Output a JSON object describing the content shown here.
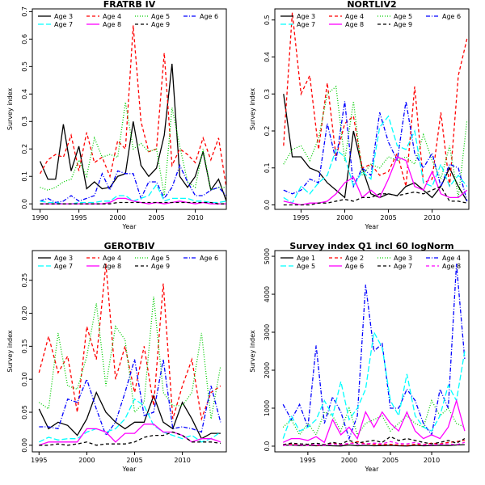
{
  "chart_data": [
    {
      "type": "line",
      "title": "FRATRB IV",
      "xlabel": "Year",
      "ylabel": "Survey index",
      "xlim": [
        1989,
        2014
      ],
      "ylim": [
        -0.02,
        0.71
      ],
      "xticks": [
        1990,
        1995,
        2000,
        2005,
        2010
      ],
      "yticks": [
        0.0,
        0.1,
        0.2,
        0.3,
        0.4,
        0.5,
        0.6,
        0.7
      ],
      "legend_placement": "top",
      "x": [
        1990,
        1991,
        1992,
        1993,
        1994,
        1995,
        1996,
        1997,
        1998,
        1999,
        2000,
        2001,
        2002,
        2003,
        2004,
        2005,
        2006,
        2007,
        2008,
        2009,
        2010,
        2011,
        2012,
        2013,
        2014
      ],
      "series": [
        {
          "name": "Age 3",
          "color": "#000000",
          "dash": "solid",
          "values": [
            0.155,
            0.09,
            0.09,
            0.29,
            0.12,
            0.21,
            0.055,
            0.08,
            0.055,
            0.06,
            0.1,
            0.11,
            0.3,
            0.14,
            0.1,
            0.13,
            0.25,
            0.51,
            0.1,
            0.06,
            0.1,
            0.19,
            0.05,
            0.09,
            0.01
          ]
        },
        {
          "name": "Age 4",
          "color": "#ff0000",
          "dash": "dash",
          "values": [
            0.11,
            0.16,
            0.18,
            0.17,
            0.25,
            0.12,
            0.26,
            0.15,
            0.17,
            0.1,
            0.23,
            0.2,
            0.65,
            0.3,
            0.19,
            0.2,
            0.55,
            0.14,
            0.2,
            0.18,
            0.15,
            0.24,
            0.16,
            0.24,
            0.06
          ]
        },
        {
          "name": "Age 5",
          "color": "#00cd00",
          "dash": "dot",
          "values": [
            0.06,
            0.05,
            0.06,
            0.08,
            0.09,
            0.16,
            0.1,
            0.24,
            0.17,
            0.18,
            0.17,
            0.37,
            0.2,
            0.22,
            0.19,
            0.2,
            0.03,
            0.35,
            0.21,
            0.08,
            0.06,
            0.2,
            0.05,
            0.06,
            0.06
          ]
        },
        {
          "name": "Age 6",
          "color": "#0000ff",
          "dash": "dashdot",
          "values": [
            0.01,
            0.02,
            0.005,
            0.01,
            0.03,
            0.01,
            0.02,
            0.03,
            0.11,
            0.05,
            0.12,
            0.11,
            0.11,
            0.02,
            0.08,
            0.08,
            0.02,
            0.06,
            0.14,
            0.08,
            0.03,
            0.03,
            0.05,
            0.06,
            0.03
          ]
        },
        {
          "name": "Age 7",
          "color": "#00ffff",
          "dash": "longdash",
          "values": [
            0.01,
            0.005,
            0.005,
            0.0,
            0.0,
            0.005,
            0.005,
            0.005,
            0.01,
            0.01,
            0.03,
            0.03,
            0.01,
            0.02,
            0.03,
            0.07,
            0.01,
            0.02,
            0.02,
            0.02,
            0.01,
            0.01,
            0.005,
            0.005,
            0.01
          ]
        },
        {
          "name": "Age 8",
          "color": "#ff00ff",
          "dash": "solid",
          "values": [
            0.0,
            0.0,
            0.0,
            0.0,
            0.0,
            0.0,
            0.0,
            0.0,
            0.0,
            0.005,
            0.02,
            0.02,
            0.01,
            0.005,
            0.0,
            0.005,
            0.0,
            0.005,
            0.01,
            0.005,
            0.0,
            0.005,
            0.0,
            0.0,
            0.0
          ]
        },
        {
          "name": "Age 9",
          "color": "#000000",
          "dash": "dash",
          "values": [
            0.0,
            0.0,
            0.0,
            0.0,
            0.0,
            0.0,
            0.0,
            0.0,
            0.0,
            0.0,
            0.005,
            0.005,
            0.005,
            0.005,
            0.005,
            0.005,
            0.005,
            0.005,
            0.005,
            0.005,
            0.005,
            0.005,
            0.005,
            0.0,
            0.0
          ]
        }
      ]
    },
    {
      "type": "line",
      "title": "NORTLIV2",
      "xlabel": "Year",
      "ylabel": "Survey index",
      "xlim": [
        1992,
        2014.2
      ],
      "ylim": [
        -0.012,
        0.53
      ],
      "xticks": [
        1995,
        2000,
        2005,
        2010
      ],
      "yticks": [
        0.0,
        0.1,
        0.2,
        0.3,
        0.4,
        0.5
      ],
      "legend_placement": "top",
      "x": [
        1993,
        1994,
        1995,
        1996,
        1997,
        1998,
        1999,
        2000,
        2001,
        2002,
        2003,
        2004,
        2005,
        2006,
        2007,
        2008,
        2009,
        2010,
        2011,
        2012,
        2013,
        2014
      ],
      "series": [
        {
          "name": "Age 3",
          "color": "#000000",
          "dash": "solid",
          "values": [
            0.3,
            0.13,
            0.13,
            0.1,
            0.09,
            0.06,
            0.04,
            0.02,
            0.2,
            0.1,
            0.03,
            0.02,
            0.03,
            0.025,
            0.05,
            0.06,
            0.04,
            0.02,
            0.05,
            0.1,
            0.05,
            0.01
          ]
        },
        {
          "name": "Age 4",
          "color": "#ff0000",
          "dash": "dash",
          "values": [
            0.16,
            0.52,
            0.3,
            0.35,
            0.15,
            0.33,
            0.13,
            0.22,
            0.24,
            0.1,
            0.11,
            0.08,
            0.09,
            0.14,
            0.05,
            0.32,
            0.06,
            0.07,
            0.25,
            0.05,
            0.35,
            0.45
          ]
        },
        {
          "name": "Age 5",
          "color": "#00cd00",
          "dash": "dot",
          "values": [
            0.11,
            0.15,
            0.16,
            0.12,
            0.18,
            0.3,
            0.32,
            0.12,
            0.28,
            0.08,
            0.11,
            0.1,
            0.13,
            0.12,
            0.13,
            0.11,
            0.19,
            0.12,
            0.07,
            0.16,
            0.02,
            0.23
          ]
        },
        {
          "name": "Age 6",
          "color": "#0000ff",
          "dash": "dashdot",
          "values": [
            0.04,
            0.03,
            0.04,
            0.07,
            0.06,
            0.22,
            0.12,
            0.28,
            0.05,
            0.1,
            0.08,
            0.25,
            0.17,
            0.12,
            0.28,
            0.14,
            0.1,
            0.14,
            0.05,
            0.11,
            0.1,
            0.01
          ]
        },
        {
          "name": "Age 7",
          "color": "#00ffff",
          "dash": "longdash",
          "values": [
            0.02,
            0.005,
            0.05,
            0.03,
            0.06,
            0.08,
            0.15,
            0.13,
            0.05,
            0.09,
            0.07,
            0.21,
            0.24,
            0.16,
            0.15,
            0.2,
            0.06,
            0.05,
            0.11,
            0.05,
            0.08,
            0.05
          ]
        },
        {
          "name": "Age 8",
          "color": "#ff00ff",
          "dash": "solid",
          "values": [
            0.01,
            0.005,
            0.0,
            0.005,
            0.005,
            0.01,
            0.03,
            0.06,
            0.075,
            0.02,
            0.04,
            0.02,
            0.07,
            0.13,
            0.12,
            0.05,
            0.04,
            0.09,
            0.03,
            0.02,
            0.02,
            0.04
          ]
        },
        {
          "name": "Age 9",
          "color": "#000000",
          "dash": "dash",
          "values": [
            0.0,
            0.0,
            0.0,
            0.0,
            0.005,
            0.005,
            0.01,
            0.015,
            0.01,
            0.02,
            0.02,
            0.03,
            0.03,
            0.025,
            0.03,
            0.035,
            0.03,
            0.04,
            0.05,
            0.01,
            0.01,
            0.005
          ]
        }
      ]
    },
    {
      "type": "line",
      "title": "GEROTBIV",
      "xlabel": "Year",
      "ylabel": "Survey index",
      "xlim": [
        1994.3,
        2014.6
      ],
      "ylim": [
        -0.01,
        0.295
      ],
      "xticks": [
        1995,
        2000,
        2005,
        2010
      ],
      "yticks": [
        0.0,
        0.05,
        0.1,
        0.15,
        0.2,
        0.25
      ],
      "legend_placement": "top",
      "x": [
        1995,
        1996,
        1997,
        1998,
        1999,
        2000,
        2001,
        2002,
        2003,
        2004,
        2005,
        2006,
        2007,
        2008,
        2009,
        2010,
        2011,
        2012,
        2013,
        2014
      ],
      "series": [
        {
          "name": "Age 3",
          "color": "#000000",
          "dash": "solid",
          "values": [
            0.055,
            0.025,
            0.035,
            0.03,
            0.015,
            0.04,
            0.08,
            0.05,
            0.035,
            0.025,
            0.035,
            0.035,
            0.075,
            0.035,
            0.025,
            0.065,
            0.04,
            0.01,
            0.018,
            0.018
          ]
        },
        {
          "name": "Age 4",
          "color": "#ff0000",
          "dash": "dash",
          "values": [
            0.11,
            0.165,
            0.11,
            0.135,
            0.05,
            0.18,
            0.13,
            0.275,
            0.1,
            0.15,
            0.08,
            0.15,
            0.06,
            0.245,
            0.04,
            0.09,
            0.13,
            0.04,
            0.08,
            0.09
          ]
        },
        {
          "name": "Age 5",
          "color": "#00cd00",
          "dash": "dot",
          "values": [
            0.065,
            0.055,
            0.17,
            0.09,
            0.085,
            0.135,
            0.215,
            0.09,
            0.18,
            0.16,
            0.05,
            0.065,
            0.225,
            0.08,
            0.06,
            0.06,
            0.08,
            0.17,
            0.04,
            0.12
          ]
        },
        {
          "name": "Age 6",
          "color": "#0000ff",
          "dash": "dashdot",
          "values": [
            0.028,
            0.028,
            0.025,
            0.07,
            0.065,
            0.1,
            0.055,
            0.015,
            0.035,
            0.08,
            0.13,
            0.045,
            0.05,
            0.13,
            0.025,
            0.028,
            0.025,
            0.02,
            0.09,
            0.035
          ]
        },
        {
          "name": "Age 7",
          "color": "#00ffff",
          "dash": "longdash",
          "values": [
            0.005,
            0.012,
            0.008,
            0.01,
            0.01,
            0.02,
            0.025,
            0.02,
            0.025,
            0.04,
            0.07,
            0.06,
            0.03,
            0.02,
            0.015,
            0.01,
            0.015,
            0.005,
            0.01,
            0.02
          ]
        },
        {
          "name": "Age 8",
          "color": "#ff00ff",
          "dash": "solid",
          "values": [
            0.0,
            0.005,
            0.005,
            0.005,
            0.005,
            0.025,
            0.025,
            0.02,
            0.005,
            0.018,
            0.018,
            0.032,
            0.032,
            0.02,
            0.02,
            0.015,
            0.005,
            0.01,
            0.01,
            0.005
          ]
        },
        {
          "name": "Age 9",
          "color": "#000000",
          "dash": "dash",
          "values": [
            0.0,
            0.0,
            0.002,
            0.0,
            0.002,
            0.005,
            0.0,
            0.002,
            0.002,
            0.002,
            0.005,
            0.012,
            0.015,
            0.015,
            0.02,
            0.015,
            0.005,
            0.005,
            0.005,
            0.003
          ]
        }
      ]
    },
    {
      "type": "line",
      "title": "Survey index Q1 incl 60 logNorm",
      "xlabel": "Year",
      "ylabel": "Survey index",
      "xlim": [
        1991,
        2014.5
      ],
      "ylim": [
        -150,
        5150
      ],
      "xticks": [
        1995,
        2000,
        2005,
        2010
      ],
      "yticks": [
        0,
        1000,
        2000,
        3000,
        4000,
        5000
      ],
      "legend_placement": "top",
      "x": [
        1992,
        1993,
        1994,
        1995,
        1996,
        1997,
        1998,
        1999,
        2000,
        2001,
        2002,
        2003,
        2004,
        2005,
        2006,
        2007,
        2008,
        2009,
        2010,
        2011,
        2012,
        2013,
        2014
      ],
      "series": [
        {
          "name": "Age 1",
          "color": "#000000",
          "dash": "solid",
          "values": [
            20,
            30,
            15,
            25,
            10,
            20,
            10,
            5,
            30,
            10,
            20,
            10,
            15,
            20,
            10,
            5,
            20,
            10,
            15,
            25,
            15,
            30,
            40
          ]
        },
        {
          "name": "Age 2",
          "color": "#ff0000",
          "dash": "dash",
          "values": [
            40,
            60,
            30,
            50,
            20,
            40,
            80,
            40,
            60,
            120,
            60,
            50,
            40,
            50,
            30,
            20,
            50,
            40,
            80,
            60,
            100,
            120,
            150
          ]
        },
        {
          "name": "Age 3",
          "color": "#00cd00",
          "dash": "dot",
          "values": [
            500,
            700,
            300,
            600,
            300,
            900,
            800,
            400,
            1000,
            300,
            600,
            700,
            800,
            400,
            600,
            800,
            600,
            500,
            1200,
            800,
            1000,
            600,
            500
          ]
        },
        {
          "name": "Age 4",
          "color": "#0000ff",
          "dash": "dashdot",
          "values": [
            1100,
            700,
            1100,
            500,
            2650,
            600,
            1300,
            900,
            200,
            800,
            4250,
            2500,
            2700,
            1000,
            1000,
            1500,
            1200,
            600,
            300,
            1500,
            1000,
            4800,
            2300
          ]
        },
        {
          "name": "Age 5",
          "color": "#00ffff",
          "dash": "longdash",
          "values": [
            200,
            800,
            400,
            500,
            700,
            1200,
            800,
            1700,
            700,
            1000,
            1500,
            3000,
            2600,
            1200,
            800,
            1900,
            800,
            500,
            400,
            800,
            1600,
            1200,
            2500
          ]
        },
        {
          "name": "Age 6",
          "color": "#ff00ff",
          "dash": "solid",
          "values": [
            100,
            200,
            200,
            150,
            250,
            100,
            700,
            300,
            500,
            200,
            900,
            500,
            900,
            600,
            400,
            900,
            400,
            200,
            300,
            200,
            500,
            1200,
            400
          ]
        },
        {
          "name": "Age 7",
          "color": "#000000",
          "dash": "dash",
          "values": [
            40,
            80,
            60,
            50,
            80,
            40,
            100,
            60,
            150,
            80,
            120,
            150,
            100,
            250,
            150,
            200,
            150,
            100,
            60,
            100,
            150,
            80,
            200
          ]
        },
        {
          "name": "Age 8",
          "color": "#ff00ff",
          "dash": "dash",
          "values": [
            20,
            30,
            30,
            20,
            40,
            20,
            60,
            30,
            80,
            50,
            60,
            80,
            60,
            120,
            70,
            60,
            100,
            40,
            30,
            50,
            60,
            40,
            100
          ]
        }
      ]
    }
  ]
}
